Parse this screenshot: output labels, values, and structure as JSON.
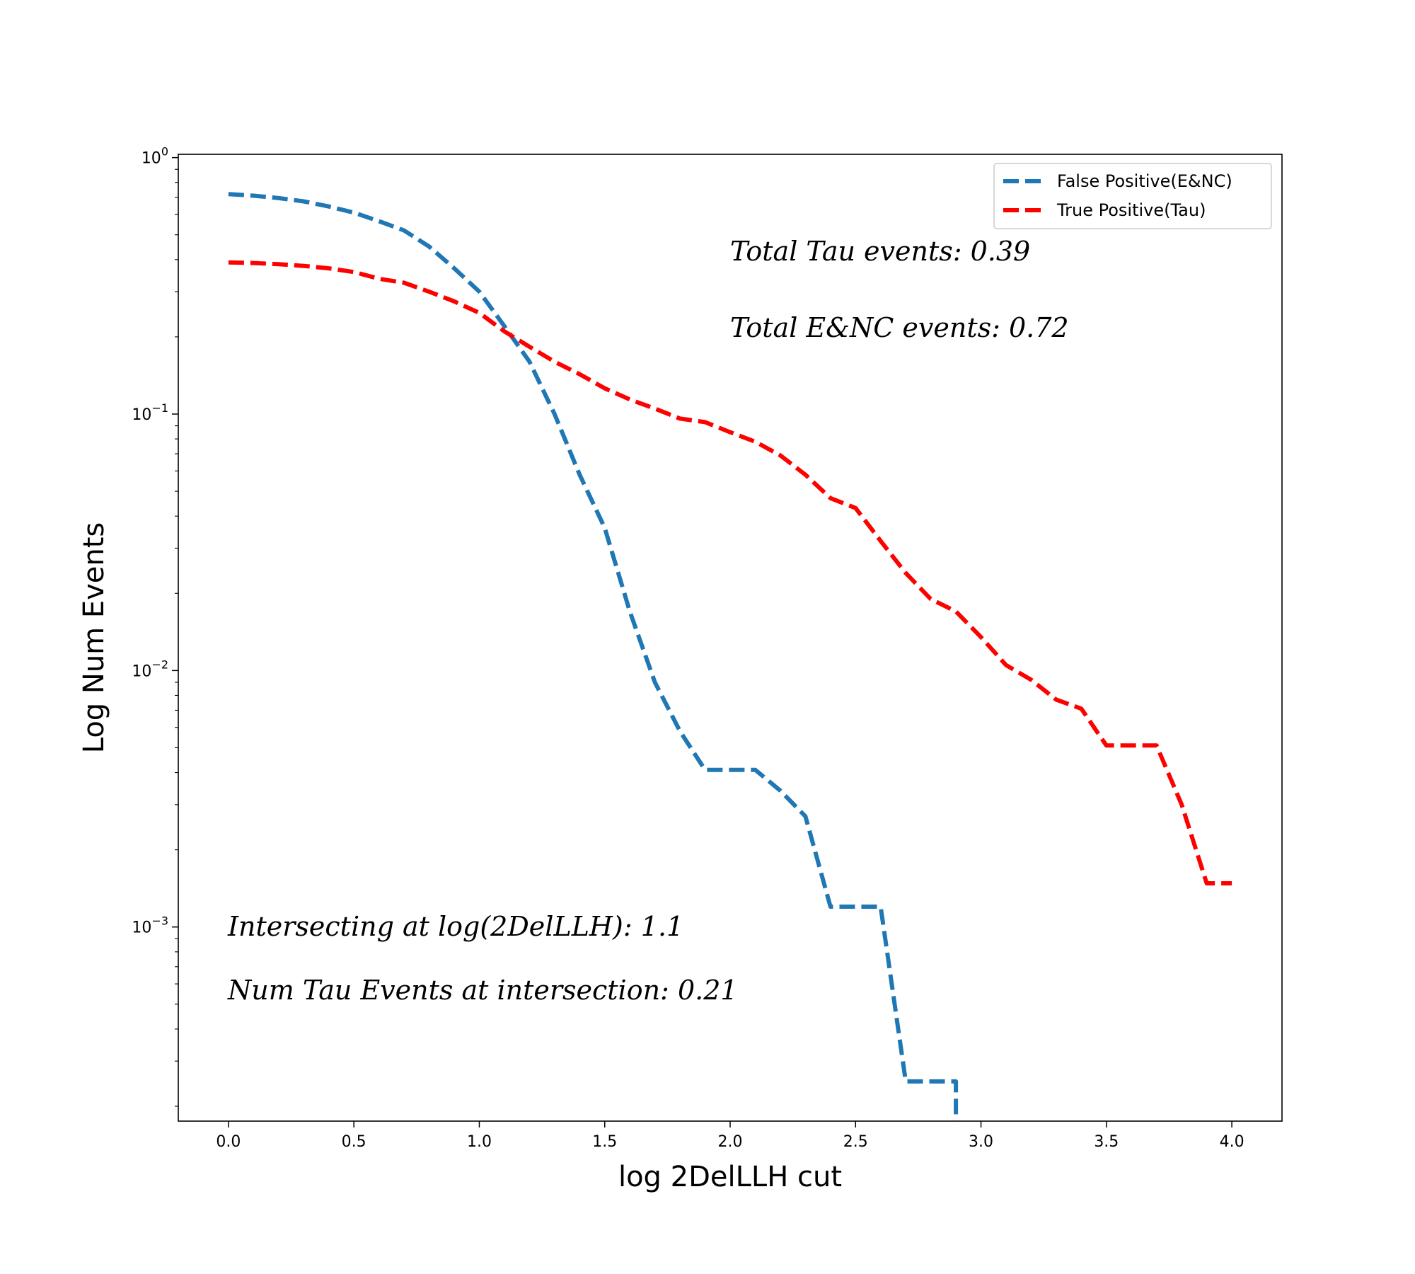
{
  "chart_data": {
    "type": "line",
    "xlabel": "log 2DelLLH cut",
    "ylabel": "Log Num Events",
    "xlim": [
      -0.2,
      4.2
    ],
    "ylim": [
      0.000175,
      1.03
    ],
    "yscale": "log",
    "xticks": [
      0.0,
      0.5,
      1.0,
      1.5,
      2.0,
      2.5,
      3.0,
      3.5,
      4.0
    ],
    "xtick_labels": [
      "0.0",
      "0.5",
      "1.0",
      "1.5",
      "2.0",
      "2.5",
      "3.0",
      "3.5",
      "4.0"
    ],
    "yticks": [
      {
        "value": 1,
        "base": "10",
        "exp": "0"
      },
      {
        "value": 0.1,
        "base": "10",
        "exp": "−1"
      },
      {
        "value": 0.01,
        "base": "10",
        "exp": "−2"
      },
      {
        "value": 0.001,
        "base": "10",
        "exp": "−3"
      }
    ],
    "grid": false,
    "legend_position": "top-right",
    "series": [
      {
        "name": "False Positive(E&NC)",
        "color": "#1f77b4",
        "style": "dashed",
        "x": [
          0.0,
          0.1,
          0.2,
          0.3,
          0.4,
          0.5,
          0.6,
          0.7,
          0.8,
          0.9,
          1.0,
          1.1,
          1.2,
          1.3,
          1.4,
          1.5,
          1.6,
          1.7,
          1.8,
          1.9,
          2.0,
          2.1,
          2.2,
          2.3,
          2.4,
          2.5,
          2.6,
          2.7,
          2.8,
          2.9,
          2.9
        ],
        "y": [
          0.72,
          0.71,
          0.695,
          0.675,
          0.645,
          0.61,
          0.565,
          0.52,
          0.45,
          0.37,
          0.3,
          0.22,
          0.16,
          0.1,
          0.058,
          0.036,
          0.017,
          0.009,
          0.0058,
          0.0041,
          0.0041,
          0.0041,
          0.0034,
          0.0027,
          0.0012,
          0.0012,
          0.0012,
          0.00025,
          0.00025,
          0.00025,
          0.00015
        ]
      },
      {
        "name": "True Positive(Tau)",
        "color": "#ff0000",
        "style": "dashed",
        "x": [
          0.0,
          0.1,
          0.2,
          0.3,
          0.4,
          0.5,
          0.6,
          0.7,
          0.8,
          0.9,
          1.0,
          1.1,
          1.2,
          1.3,
          1.4,
          1.5,
          1.6,
          1.7,
          1.8,
          1.9,
          2.0,
          2.1,
          2.2,
          2.3,
          2.4,
          2.5,
          2.6,
          2.7,
          2.8,
          2.9,
          3.0,
          3.1,
          3.2,
          3.3,
          3.4,
          3.5,
          3.6,
          3.7,
          3.8,
          3.9,
          4.0
        ],
        "y": [
          0.39,
          0.388,
          0.384,
          0.378,
          0.37,
          0.358,
          0.337,
          0.325,
          0.3,
          0.275,
          0.248,
          0.21,
          0.183,
          0.16,
          0.143,
          0.126,
          0.114,
          0.105,
          0.096,
          0.093,
          0.085,
          0.078,
          0.069,
          0.058,
          0.047,
          0.043,
          0.032,
          0.024,
          0.019,
          0.017,
          0.0135,
          0.0105,
          0.0092,
          0.0077,
          0.0071,
          0.0051,
          0.0051,
          0.0051,
          0.003,
          0.00148,
          0.00148
        ]
      }
    ],
    "annotations": [
      {
        "key": "total_tau",
        "text": "Total Tau events: 0.39"
      },
      {
        "key": "total_enc",
        "text": "Total E&NC events: 0.72"
      },
      {
        "key": "intersect",
        "text": "Intersecting at log(2DelLLH): 1.1"
      },
      {
        "key": "num_tau",
        "text": "Num Tau Events at intersection: 0.21"
      }
    ]
  }
}
